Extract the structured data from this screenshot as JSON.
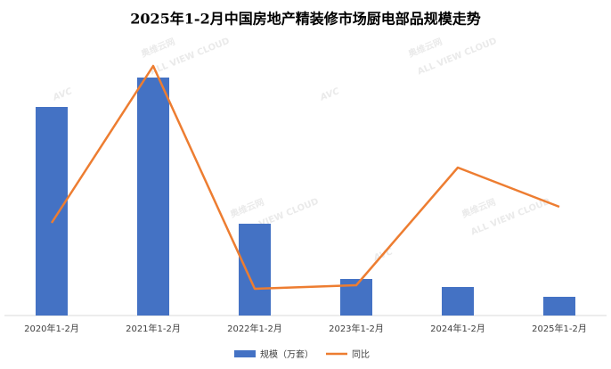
{
  "chart_data": {
    "type": "bar-line",
    "title": "2025年1-2月中国房地产精装修市场厨电部品规模走势",
    "categories": [
      "2020年1-2月",
      "2021年1-2月",
      "2022年1-2月",
      "2023年1-2月",
      "2024年1-2月",
      "2025年1-2月"
    ],
    "series": [
      {
        "name": "规模（万套）",
        "type": "bar",
        "color": "#4472c4",
        "values": [
          23.4,
          26.7,
          10.3,
          4.1,
          3.2,
          2.1
        ]
      },
      {
        "name": "同比",
        "type": "line",
        "axis": "y2",
        "color": "#ed7d31",
        "values": [
          -48,
          40,
          -85,
          -83,
          -17,
          -39
        ]
      }
    ],
    "ylim": [
      0,
      30
    ],
    "y2lim": [
      -100,
      50
    ],
    "watermark": {
      "brand": "AVC",
      "name": "奥维云网",
      "sub": "ALL VIEW CLOUD"
    }
  }
}
